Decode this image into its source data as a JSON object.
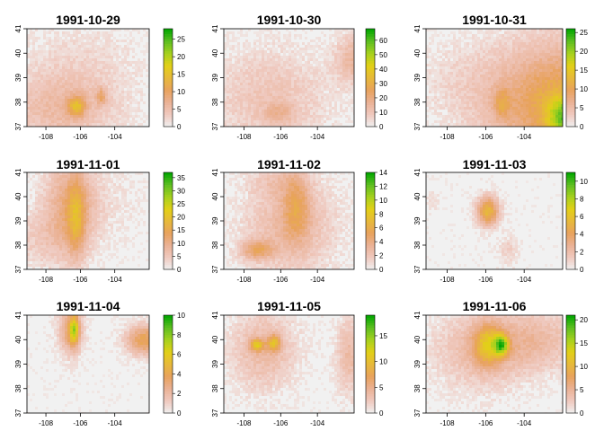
{
  "chart_data": {
    "type": "heatmap",
    "layout": "3x3 small multiples",
    "x_ticks": [
      "-108",
      "-106",
      "-104"
    ],
    "y_ticks": [
      "37",
      "38",
      "39",
      "40",
      "41"
    ],
    "xlim": [
      -109.1,
      -102.0
    ],
    "ylim": [
      37.0,
      41.0
    ],
    "colormap": [
      "#f1f1f1",
      "#efc9bf",
      "#eab296",
      "#e8a25d",
      "#e7b93a",
      "#e2d017",
      "#a6d11e",
      "#5ebe21",
      "#00a600"
    ],
    "panels": [
      {
        "title": "1991-10-29",
        "legend_max": 28,
        "legend_ticks": [
          "0",
          "5",
          "10",
          "15",
          "20",
          "25"
        ]
      },
      {
        "title": "1991-10-30",
        "legend_max": 68,
        "legend_ticks": [
          "0",
          "10",
          "20",
          "30",
          "40",
          "50",
          "60"
        ]
      },
      {
        "title": "1991-10-31",
        "legend_max": 26,
        "legend_ticks": [
          "0",
          "5",
          "10",
          "15",
          "20",
          "25"
        ]
      },
      {
        "title": "1991-11-01",
        "legend_max": 37,
        "legend_ticks": [
          "0",
          "5",
          "10",
          "15",
          "20",
          "25",
          "30",
          "35"
        ]
      },
      {
        "title": "1991-11-02",
        "legend_max": 14,
        "legend_ticks": [
          "0",
          "2",
          "4",
          "6",
          "8",
          "10",
          "12",
          "14"
        ]
      },
      {
        "title": "1991-11-03",
        "legend_max": 11,
        "legend_ticks": [
          "0",
          "2",
          "4",
          "6",
          "8",
          "10"
        ]
      },
      {
        "title": "1991-11-04",
        "legend_max": 10,
        "legend_ticks": [
          "0",
          "2",
          "4",
          "6",
          "8",
          "10"
        ]
      },
      {
        "title": "1991-11-05",
        "legend_max": 19,
        "legend_ticks": [
          "0",
          "5",
          "10",
          "15"
        ]
      },
      {
        "title": "1991-11-06",
        "legend_max": 21,
        "legend_ticks": [
          "0",
          "5",
          "10",
          "15",
          "20"
        ]
      }
    ]
  }
}
